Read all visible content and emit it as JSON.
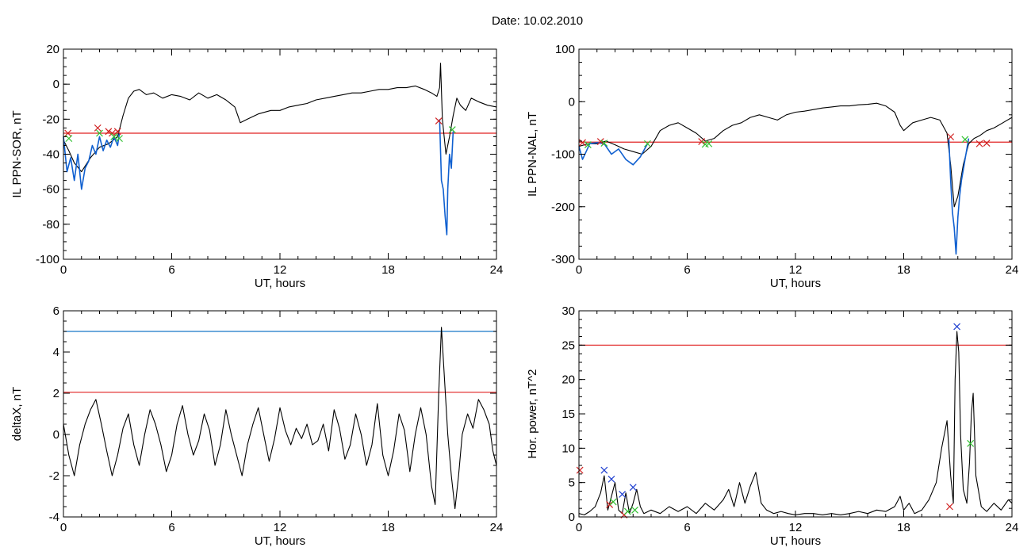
{
  "page": {
    "title": "Date:  10.02.2010"
  },
  "colors": {
    "series": "#000000",
    "highlight": "#1060d0",
    "threshold_red": "#e02020",
    "threshold_blue": "#1878c8",
    "marker_red": "#d02020",
    "marker_green": "#30c030",
    "marker_blue": "#2040d0"
  },
  "chart_data": [
    {
      "id": "sor",
      "type": "line",
      "title": "",
      "xlabel": "UT, hours",
      "ylabel": "IL PPN-SOR, nT",
      "xlim": [
        0,
        24
      ],
      "ylim": [
        -100,
        20
      ],
      "xticks": [
        0,
        6,
        12,
        18,
        24
      ],
      "yticks": [
        -100,
        -80,
        -60,
        -40,
        -20,
        0,
        20
      ],
      "xtick_labels": [
        "0",
        "6",
        "12",
        "18",
        "24"
      ],
      "ytick_labels": [
        "-100",
        "-80",
        "-60",
        "-40",
        "-20",
        "0",
        "20"
      ],
      "grid": false,
      "series": [
        {
          "color": "#000000",
          "x": [
            0,
            0.3,
            0.6,
            1.0,
            1.5,
            2.0,
            2.5,
            3.0,
            3.3,
            3.6,
            3.9,
            4.2,
            4.6,
            5.0,
            5.5,
            6.0,
            6.5,
            7.0,
            7.5,
            8.0,
            8.5,
            9.0,
            9.5,
            9.8,
            10.2,
            10.8,
            11.5,
            12.0,
            12.5,
            13.0,
            13.5,
            14.0,
            14.5,
            15.0,
            15.5,
            16.0,
            16.5,
            17.0,
            17.5,
            18.0,
            18.5,
            19.0,
            19.5,
            20.0,
            20.4,
            20.7,
            20.85,
            20.9,
            21.0,
            21.2,
            21.4,
            21.6,
            21.8,
            22.0,
            22.3,
            22.6,
            23.0,
            23.5,
            24.0
          ],
          "y": [
            -32,
            -38,
            -45,
            -50,
            -42,
            -36,
            -34,
            -30,
            -18,
            -8,
            -4,
            -3,
            -6,
            -5,
            -8,
            -6,
            -7,
            -9,
            -5,
            -8,
            -6,
            -9,
            -13,
            -22,
            -20,
            -17,
            -15,
            -15,
            -13,
            -12,
            -11,
            -9,
            -8,
            -7,
            -6,
            -5,
            -5,
            -4,
            -3,
            -3,
            -2,
            -2,
            -1,
            -3,
            -5,
            -7,
            -2,
            12,
            -20,
            -40,
            -30,
            -18,
            -8,
            -12,
            -15,
            -8,
            -10,
            -12,
            -13
          ]
        },
        {
          "color": "#1060d0",
          "x": [
            0,
            0.2,
            0.4,
            0.6,
            0.8,
            1.0,
            1.2,
            1.4,
            1.6,
            1.8,
            2.0,
            2.2,
            2.4,
            2.6,
            2.8,
            3.0,
            3.1
          ],
          "y": [
            -30,
            -50,
            -42,
            -55,
            -40,
            -60,
            -48,
            -44,
            -35,
            -40,
            -30,
            -38,
            -32,
            -36,
            -30,
            -35,
            -28
          ]
        },
        {
          "color": "#1060d0",
          "x": [
            20.85,
            20.95,
            21.05,
            21.15,
            21.25,
            21.3,
            21.4,
            21.5,
            21.6
          ],
          "y": [
            -20,
            -55,
            -60,
            -75,
            -86,
            -60,
            -40,
            -48,
            -27
          ]
        }
      ],
      "hlines": [
        {
          "y": -28,
          "color": "#e02020"
        }
      ],
      "markers": [
        {
          "x": 0.25,
          "y": -28,
          "color": "#d02020"
        },
        {
          "x": 0.3,
          "y": -31,
          "color": "#30c030"
        },
        {
          "x": 1.9,
          "y": -25,
          "color": "#d02020"
        },
        {
          "x": 2.0,
          "y": -28,
          "color": "#30c030"
        },
        {
          "x": 2.5,
          "y": -27,
          "color": "#d02020"
        },
        {
          "x": 2.7,
          "y": -28,
          "color": "#d02020"
        },
        {
          "x": 2.8,
          "y": -30,
          "color": "#30c030"
        },
        {
          "x": 3.0,
          "y": -27,
          "color": "#d02020"
        },
        {
          "x": 3.1,
          "y": -31,
          "color": "#30c030"
        },
        {
          "x": 20.8,
          "y": -21,
          "color": "#d02020"
        },
        {
          "x": 21.55,
          "y": -26,
          "color": "#30c030"
        }
      ]
    },
    {
      "id": "nal",
      "type": "line",
      "title": "",
      "xlabel": "UT, hours",
      "ylabel": "IL PPN-NAL, nT",
      "xlim": [
        0,
        24
      ],
      "ylim": [
        -300,
        100
      ],
      "xticks": [
        0,
        6,
        12,
        18,
        24
      ],
      "yticks": [
        -300,
        -200,
        -100,
        0,
        100
      ],
      "xtick_labels": [
        "0",
        "6",
        "12",
        "18",
        "24"
      ],
      "ytick_labels": [
        "-300",
        "-200",
        "-100",
        "0",
        "100"
      ],
      "grid": false,
      "series": [
        {
          "color": "#000000",
          "x": [
            0,
            0.5,
            1.0,
            1.5,
            2.0,
            2.5,
            3.0,
            3.5,
            4.0,
            4.5,
            5.0,
            5.5,
            6.0,
            6.5,
            7.0,
            7.5,
            8.0,
            8.5,
            9.0,
            9.5,
            10.0,
            10.5,
            11.0,
            11.5,
            12.0,
            12.5,
            13.0,
            13.5,
            14.0,
            14.5,
            15.0,
            15.5,
            16.0,
            16.5,
            17.0,
            17.5,
            17.8,
            18.0,
            18.5,
            19.0,
            19.5,
            20.0,
            20.4,
            20.6,
            20.8,
            21.0,
            21.3,
            21.6,
            21.9,
            22.2,
            22.6,
            23.0,
            23.5,
            24.0
          ],
          "y": [
            -85,
            -80,
            -80,
            -75,
            -82,
            -90,
            -95,
            -100,
            -85,
            -55,
            -45,
            -40,
            -50,
            -60,
            -75,
            -70,
            -55,
            -45,
            -40,
            -30,
            -25,
            -30,
            -35,
            -25,
            -20,
            -18,
            -15,
            -12,
            -10,
            -8,
            -8,
            -6,
            -5,
            -3,
            -8,
            -20,
            -45,
            -55,
            -40,
            -35,
            -30,
            -35,
            -60,
            -120,
            -200,
            -180,
            -120,
            -80,
            -70,
            -65,
            -55,
            -50,
            -40,
            -30
          ]
        },
        {
          "color": "#1060d0",
          "x": [
            0,
            0.2,
            0.4,
            0.6,
            1.0,
            1.4,
            1.8,
            2.2,
            2.6,
            3.0,
            3.4,
            3.8
          ],
          "y": [
            -85,
            -110,
            -95,
            -80,
            -78,
            -80,
            -100,
            -90,
            -110,
            -120,
            -105,
            -80
          ]
        },
        {
          "color": "#1060d0",
          "x": [
            20.5,
            20.6,
            20.7,
            20.8,
            20.9,
            21.0,
            21.1,
            21.2,
            21.3,
            21.4,
            21.6
          ],
          "y": [
            -70,
            -150,
            -210,
            -240,
            -290,
            -220,
            -180,
            -150,
            -130,
            -110,
            -70
          ]
        }
      ],
      "hlines": [
        {
          "y": -77,
          "color": "#e02020"
        }
      ],
      "markers": [
        {
          "x": 0.2,
          "y": -78,
          "color": "#d02020"
        },
        {
          "x": 0.5,
          "y": -82,
          "color": "#30c030"
        },
        {
          "x": 1.2,
          "y": -76,
          "color": "#d02020"
        },
        {
          "x": 1.4,
          "y": -79,
          "color": "#30c030"
        },
        {
          "x": 3.8,
          "y": -80,
          "color": "#30c030"
        },
        {
          "x": 6.8,
          "y": -76,
          "color": "#d02020"
        },
        {
          "x": 7.0,
          "y": -81,
          "color": "#30c030"
        },
        {
          "x": 7.2,
          "y": -80,
          "color": "#30c030"
        },
        {
          "x": 20.6,
          "y": -67,
          "color": "#d02020"
        },
        {
          "x": 21.4,
          "y": -72,
          "color": "#30c030"
        },
        {
          "x": 22.2,
          "y": -80,
          "color": "#d02020"
        },
        {
          "x": 22.6,
          "y": -79,
          "color": "#d02020"
        }
      ]
    },
    {
      "id": "deltax",
      "type": "line",
      "title": "",
      "xlabel": "UT, hours",
      "ylabel": "deltaX, nT",
      "xlim": [
        0,
        24
      ],
      "ylim": [
        -4,
        6
      ],
      "xticks": [
        0,
        6,
        12,
        18,
        24
      ],
      "yticks": [
        -4,
        -2,
        0,
        2,
        4,
        6
      ],
      "xtick_labels": [
        "0",
        "6",
        "12",
        "18",
        "24"
      ],
      "ytick_labels": [
        "-4",
        "-2",
        "0",
        "2",
        "4",
        "6"
      ],
      "grid": false,
      "series": [
        {
          "color": "#000000",
          "x": [
            0,
            0.3,
            0.6,
            0.9,
            1.2,
            1.5,
            1.8,
            2.1,
            2.4,
            2.7,
            3.0,
            3.3,
            3.6,
            3.9,
            4.2,
            4.5,
            4.8,
            5.1,
            5.4,
            5.7,
            6.0,
            6.3,
            6.6,
            6.9,
            7.2,
            7.5,
            7.8,
            8.1,
            8.4,
            8.7,
            9.0,
            9.3,
            9.6,
            9.9,
            10.2,
            10.5,
            10.8,
            11.1,
            11.4,
            11.7,
            12.0,
            12.3,
            12.6,
            12.9,
            13.2,
            13.5,
            13.8,
            14.1,
            14.4,
            14.7,
            15.0,
            15.3,
            15.6,
            15.9,
            16.2,
            16.5,
            16.8,
            17.1,
            17.4,
            17.7,
            18.0,
            18.3,
            18.6,
            18.9,
            19.2,
            19.5,
            19.8,
            20.1,
            20.4,
            20.6,
            20.8,
            20.95,
            21.1,
            21.3,
            21.5,
            21.7,
            21.9,
            22.1,
            22.4,
            22.7,
            23.0,
            23.3,
            23.6,
            23.8,
            24.0
          ],
          "y": [
            0.5,
            -1.0,
            -2.0,
            -0.5,
            0.5,
            1.2,
            1.7,
            0.5,
            -0.8,
            -2.0,
            -1.0,
            0.3,
            1.0,
            -0.5,
            -1.5,
            0.0,
            1.2,
            0.5,
            -0.5,
            -1.8,
            -1.0,
            0.5,
            1.4,
            0.0,
            -1.0,
            -0.3,
            1.0,
            0.2,
            -1.5,
            -0.5,
            1.2,
            0.0,
            -1.0,
            -2.0,
            -0.5,
            0.5,
            1.3,
            0.0,
            -1.3,
            -0.2,
            1.3,
            0.2,
            -0.5,
            0.3,
            -0.2,
            0.5,
            -0.5,
            -0.3,
            0.5,
            -0.8,
            1.2,
            0.3,
            -1.2,
            -0.5,
            1.0,
            0.0,
            -1.5,
            -0.5,
            1.5,
            -1.0,
            -2.0,
            -0.8,
            1.0,
            0.2,
            -1.8,
            0.0,
            1.3,
            0.0,
            -2.5,
            -3.4,
            2.0,
            5.2,
            3.0,
            0.0,
            -2.0,
            -3.6,
            -2.0,
            0.0,
            1.0,
            0.3,
            1.7,
            1.2,
            0.5,
            -0.8,
            -1.5
          ]
        }
      ],
      "hlines": [
        {
          "y": 5,
          "color": "#1878c8"
        },
        {
          "y": 2.05,
          "color": "#e02020"
        }
      ],
      "markers": []
    },
    {
      "id": "power",
      "type": "line",
      "title": "",
      "xlabel": "UT, hours",
      "ylabel": "Hor. power, nT^2",
      "xlim": [
        0,
        24
      ],
      "ylim": [
        0,
        30
      ],
      "xticks": [
        0,
        6,
        12,
        18,
        24
      ],
      "yticks": [
        0,
        5,
        10,
        15,
        20,
        25,
        30
      ],
      "xtick_labels": [
        "0",
        "6",
        "12",
        "18",
        "24"
      ],
      "ytick_labels": [
        "0",
        "5",
        "10",
        "15",
        "20",
        "25",
        "30"
      ],
      "grid": false,
      "series": [
        {
          "color": "#000000",
          "x": [
            0,
            0.3,
            0.6,
            0.9,
            1.2,
            1.4,
            1.6,
            1.8,
            2.0,
            2.2,
            2.4,
            2.6,
            2.8,
            3.0,
            3.2,
            3.4,
            3.6,
            4.0,
            4.5,
            5.0,
            5.5,
            6.0,
            6.5,
            7.0,
            7.5,
            8.0,
            8.3,
            8.6,
            8.9,
            9.2,
            9.5,
            9.8,
            10.1,
            10.4,
            10.8,
            11.2,
            11.6,
            12.0,
            12.5,
            13.0,
            13.5,
            14.0,
            14.5,
            15.0,
            15.5,
            16.0,
            16.5,
            17.0,
            17.5,
            17.8,
            18.0,
            18.3,
            18.6,
            19.0,
            19.4,
            19.8,
            20.1,
            20.4,
            20.6,
            20.75,
            20.85,
            20.95,
            21.05,
            21.15,
            21.3,
            21.5,
            21.65,
            21.75,
            21.85,
            22.0,
            22.3,
            22.6,
            23.0,
            23.4,
            23.8,
            24.0
          ],
          "y": [
            0.5,
            0.3,
            0.8,
            1.5,
            3.5,
            6.0,
            1.0,
            3.0,
            5.0,
            1.0,
            0.5,
            3.5,
            0.5,
            2.0,
            4.0,
            1.5,
            0.5,
            1.0,
            0.5,
            1.5,
            0.8,
            1.5,
            0.5,
            2.0,
            1.0,
            2.5,
            4.0,
            1.5,
            5.0,
            2.0,
            4.5,
            6.5,
            2.0,
            1.0,
            0.5,
            0.8,
            0.5,
            0.3,
            0.5,
            0.5,
            0.3,
            0.5,
            0.3,
            0.5,
            0.8,
            0.5,
            1.0,
            0.8,
            1.5,
            3.0,
            1.0,
            2.0,
            0.5,
            1.0,
            2.5,
            5.0,
            10.0,
            14.0,
            6.0,
            2.0,
            20.0,
            27.0,
            24.0,
            12.0,
            4.0,
            2.0,
            8.0,
            15.0,
            18.0,
            6.0,
            1.5,
            0.8,
            2.0,
            1.0,
            2.5,
            2.0
          ]
        }
      ],
      "hlines": [
        {
          "y": 25,
          "color": "#e02020"
        }
      ],
      "markers": [
        {
          "x": 0.05,
          "y": 6.8,
          "color": "#d02020"
        },
        {
          "x": 1.4,
          "y": 6.8,
          "color": "#2040d0"
        },
        {
          "x": 1.8,
          "y": 5.5,
          "color": "#2040d0"
        },
        {
          "x": 1.7,
          "y": 1.8,
          "color": "#d02020"
        },
        {
          "x": 1.9,
          "y": 2.2,
          "color": "#30c030"
        },
        {
          "x": 2.4,
          "y": 3.3,
          "color": "#2040d0"
        },
        {
          "x": 2.5,
          "y": 0.3,
          "color": "#d02020"
        },
        {
          "x": 2.7,
          "y": 0.8,
          "color": "#30c030"
        },
        {
          "x": 3.0,
          "y": 4.3,
          "color": "#2040d0"
        },
        {
          "x": 3.1,
          "y": 1.0,
          "color": "#30c030"
        },
        {
          "x": 20.55,
          "y": 1.5,
          "color": "#d02020"
        },
        {
          "x": 20.95,
          "y": 27.7,
          "color": "#2040d0"
        },
        {
          "x": 21.7,
          "y": 10.7,
          "color": "#30c030"
        }
      ]
    }
  ]
}
